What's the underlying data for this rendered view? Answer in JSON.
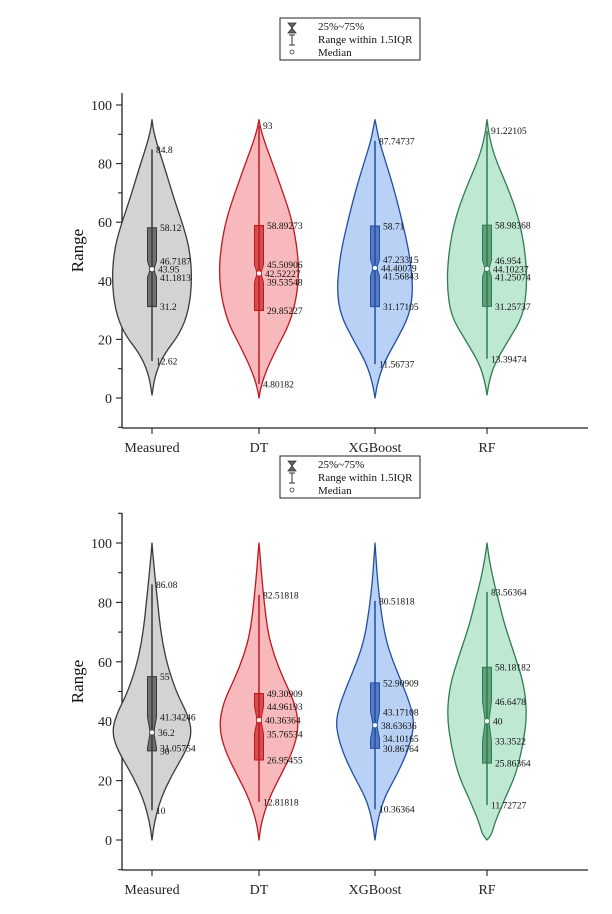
{
  "legend": {
    "items": [
      {
        "icon": "hourglass-box-icon",
        "label": "25%~75%"
      },
      {
        "icon": "whisker-icon",
        "label": "Range within 1.5IQR"
      },
      {
        "icon": "median-circle-icon",
        "label": "Median"
      }
    ]
  },
  "chart_data": [
    {
      "type": "violin",
      "title": "",
      "xlabel": "",
      "ylabel": "Range",
      "ylim": [
        -10,
        110
      ],
      "yticks": [
        0,
        20,
        40,
        60,
        80,
        100
      ],
      "ytick_labels": [
        "0",
        "20",
        "40",
        "60",
        "80",
        "100"
      ],
      "legend_position": "top-center",
      "categories": [
        "Measured",
        "DT",
        "XGBoost",
        "RF"
      ],
      "colors": {
        "fill": [
          "#d3d3d3",
          "#f7b9bb",
          "#b9d1f5",
          "#bfe8d2"
        ],
        "stroke": [
          "#3a3a3a",
          "#c0161d",
          "#1f4fa3",
          "#2e7d4f"
        ]
      },
      "series": [
        {
          "name": "Measured",
          "violin_range": [
            1,
            95
          ],
          "whisker_low": 12.62,
          "q1": 31.2,
          "notch_low": 41.1813,
          "median": 43.95,
          "notch_high": 46.7187,
          "q3": 58.12,
          "whisker_high": 84.8,
          "labels": [
            "84.8",
            "58.12",
            "46.7187",
            "43.95",
            "41.1813",
            "31.2",
            "12.62"
          ]
        },
        {
          "name": "DT",
          "violin_range": [
            0,
            95
          ],
          "whisker_low": 4.80182,
          "q1": 29.85227,
          "notch_low": 39.53548,
          "median": 42.52227,
          "notch_high": 45.50906,
          "q3": 58.89273,
          "whisker_high": 93,
          "labels": [
            "93",
            "58.89273",
            "45.50906",
            "42.52227",
            "39.53548",
            "29.85227",
            "4.80182"
          ]
        },
        {
          "name": "XGBoost",
          "violin_range": [
            0,
            95
          ],
          "whisker_low": 11.56737,
          "q1": 31.17105,
          "notch_low": 41.56843,
          "median": 44.40079,
          "notch_high": 47.23315,
          "q3": 58.71,
          "whisker_high": 87.74737,
          "labels": [
            "87.74737",
            "58.71",
            "47.23315",
            "44.40079",
            "41.56843",
            "31.17105",
            "11.56737"
          ]
        },
        {
          "name": "RF",
          "violin_range": [
            1,
            95
          ],
          "whisker_low": 13.39474,
          "q1": 31.25737,
          "notch_low": 41.25074,
          "median": 44.10237,
          "notch_high": 46.954,
          "q3": 58.98368,
          "whisker_high": 91.22105,
          "labels": [
            "91.22105",
            "58.98368",
            "46.954",
            "44.10237",
            "41.25074",
            "31.25737",
            "13.39474"
          ]
        }
      ]
    },
    {
      "type": "violin",
      "title": "",
      "xlabel": "",
      "ylabel": "Range",
      "ylim": [
        -10,
        110
      ],
      "yticks": [
        0,
        20,
        40,
        60,
        80,
        100
      ],
      "ytick_labels": [
        "0",
        "20",
        "40",
        "60",
        "80",
        "100"
      ],
      "legend_position": "top-center",
      "categories": [
        "Measured",
        "DT",
        "XGBoost",
        "RF"
      ],
      "colors": {
        "fill": [
          "#d3d3d3",
          "#f7b9bb",
          "#b9d1f5",
          "#bfe8d2"
        ],
        "stroke": [
          "#3a3a3a",
          "#c0161d",
          "#1f4fa3",
          "#2e7d4f"
        ]
      },
      "series": [
        {
          "name": "Measured",
          "violin_range": [
            0,
            100
          ],
          "whisker_low": 10,
          "q1": 30,
          "notch_low": 31.05754,
          "median": 36.2,
          "notch_high": 41.34246,
          "q3": 55,
          "whisker_high": 86.08,
          "labels": [
            "86.08",
            "55",
            "41.34246",
            "36.2",
            "31.05754",
            "30",
            "10"
          ]
        },
        {
          "name": "DT",
          "violin_range": [
            0,
            100
          ],
          "whisker_low": 12.81818,
          "q1": 26.95455,
          "notch_low": 35.76534,
          "median": 40.36364,
          "notch_high": 44.96193,
          "q3": 49.30909,
          "whisker_high": 82.51818,
          "labels": [
            "82.51818",
            "49.30909",
            "44.96193",
            "40.36364",
            "35.76534",
            "26.95455",
            "12.81818"
          ]
        },
        {
          "name": "XGBoost",
          "violin_range": [
            0,
            100
          ],
          "whisker_low": 10.36364,
          "q1": 30.86764,
          "notch_low": 34.10165,
          "median": 38.63636,
          "notch_high": 43.17108,
          "q3": 52.90909,
          "whisker_high": 80.51818,
          "labels": [
            "80.51818",
            "52.90909",
            "43.17108",
            "38.63636",
            "34.10165",
            "30.86764",
            "10.36364"
          ]
        },
        {
          "name": "RF",
          "violin_range": [
            0,
            100
          ],
          "whisker_low": 11.72727,
          "q1": 25.86364,
          "notch_low": 33.3522,
          "median": 40,
          "notch_high": 46.6478,
          "q3": 58.18182,
          "whisker_high": 83.56364,
          "labels": [
            "83.56364",
            "58.18182",
            "46.6478",
            "40",
            "33.3522",
            "25.86364",
            "11.72727"
          ]
        }
      ]
    }
  ]
}
